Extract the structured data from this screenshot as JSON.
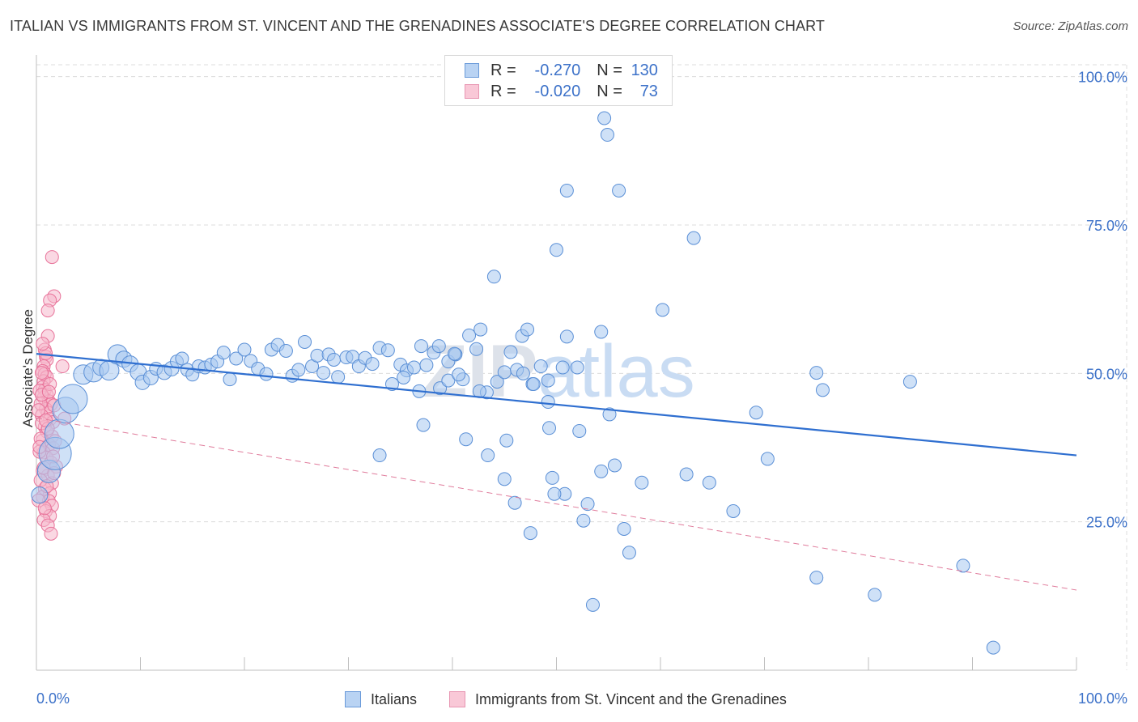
{
  "header": {
    "title": "ITALIAN VS IMMIGRANTS FROM ST. VINCENT AND THE GRENADINES ASSOCIATE'S DEGREE CORRELATION CHART",
    "source": "Source: ZipAtlas.com"
  },
  "legend": {
    "rows": [
      {
        "r_label": "R =",
        "r_value": "-0.270",
        "n_label": "N =",
        "n_value": "130"
      },
      {
        "r_label": "R =",
        "r_value": "-0.020",
        "n_label": "N =",
        "n_value": "73"
      }
    ],
    "bottom": [
      "Italians",
      "Immigrants from St. Vincent and the Grenadines"
    ]
  },
  "colors": {
    "blue_fill": "#a8c8f0",
    "blue_stroke": "#5a8fd6",
    "blue_line": "#2f6fd0",
    "pink_fill": "#f6b8cc",
    "pink_stroke": "#e8739a",
    "pink_line": "#e07c9c",
    "tick_text": "#3d72c9",
    "grid": "#dcdcdc"
  },
  "chart_data": {
    "type": "scatter",
    "ylabel": "Associate's Degree",
    "xlim": [
      0,
      100
    ],
    "ylim": [
      0,
      102
    ],
    "x_tick_labels": [
      "0.0%",
      "100.0%"
    ],
    "y_ticks": [
      25,
      50,
      75,
      100
    ],
    "y_tick_labels": [
      "25.0%",
      "50.0%",
      "75.0%",
      "100.0%"
    ],
    "grid": "horizontal dashed",
    "watermark": "ZIPatlas",
    "series": [
      {
        "name": "Italians",
        "color": "#a8c8f0",
        "trend": {
          "x": [
            0,
            100
          ],
          "y": [
            53.3,
            36.2
          ]
        },
        "points": [
          [
            0.3,
            29.5,
            10
          ],
          [
            1.2,
            33.5,
            14
          ],
          [
            1.8,
            36.5,
            20
          ],
          [
            2.2,
            39.8,
            18
          ],
          [
            2.8,
            43.8,
            16
          ],
          [
            3.5,
            45.7,
            18
          ],
          [
            4.5,
            49.8,
            12
          ],
          [
            5.5,
            50.2,
            12
          ],
          [
            6.2,
            51.0,
            10
          ],
          [
            7.0,
            50.5,
            12
          ],
          [
            7.8,
            53.2,
            12
          ],
          [
            8.4,
            52.4,
            10
          ],
          [
            9.0,
            51.6,
            10
          ],
          [
            9.8,
            50.2,
            10
          ],
          [
            10.2,
            48.5,
            9
          ],
          [
            11.0,
            49.3,
            9
          ],
          [
            11.5,
            50.8,
            8
          ],
          [
            12.3,
            50.2,
            9
          ],
          [
            13.0,
            50.8,
            9
          ],
          [
            13.5,
            52.0,
            8
          ],
          [
            14.0,
            52.5,
            8
          ],
          [
            14.5,
            50.6,
            8
          ],
          [
            15.0,
            49.8,
            8
          ],
          [
            15.6,
            51.2,
            8
          ],
          [
            16.2,
            51.0,
            8
          ],
          [
            16.8,
            51.5,
            8
          ],
          [
            17.4,
            52.0,
            8
          ],
          [
            18.0,
            53.5,
            8
          ],
          [
            18.6,
            49.0,
            8
          ],
          [
            19.2,
            52.5,
            8
          ],
          [
            20.0,
            54.0,
            8
          ],
          [
            20.6,
            52.1,
            8
          ],
          [
            21.3,
            50.8,
            8
          ],
          [
            22.1,
            49.9,
            8
          ],
          [
            22.6,
            54.0,
            8
          ],
          [
            23.2,
            54.8,
            8
          ],
          [
            24.0,
            53.8,
            8
          ],
          [
            24.6,
            49.6,
            8
          ],
          [
            25.2,
            50.6,
            8
          ],
          [
            25.8,
            55.3,
            8
          ],
          [
            26.5,
            51.2,
            8
          ],
          [
            27.0,
            53.0,
            8
          ],
          [
            27.6,
            50.1,
            8
          ],
          [
            28.1,
            53.2,
            8
          ],
          [
            28.6,
            52.3,
            8
          ],
          [
            29.0,
            49.4,
            8
          ],
          [
            29.8,
            52.7,
            8
          ],
          [
            30.4,
            52.8,
            8
          ],
          [
            31.0,
            51.2,
            8
          ],
          [
            31.6,
            52.6,
            8
          ],
          [
            32.3,
            51.6,
            8
          ],
          [
            33.0,
            54.3,
            8
          ],
          [
            33.8,
            53.9,
            8
          ],
          [
            34.2,
            48.2,
            8
          ],
          [
            35.0,
            51.5,
            8
          ],
          [
            35.6,
            50.5,
            8
          ],
          [
            36.3,
            51.0,
            8
          ],
          [
            37.0,
            54.6,
            8
          ],
          [
            37.5,
            51.4,
            8
          ],
          [
            38.2,
            53.5,
            8
          ],
          [
            38.8,
            47.5,
            8
          ],
          [
            39.6,
            52.0,
            8
          ],
          [
            40.3,
            53.2,
            8
          ],
          [
            41.0,
            49.0,
            8
          ],
          [
            41.6,
            56.4,
            8
          ],
          [
            42.3,
            54.1,
            8
          ],
          [
            42.7,
            57.4,
            8
          ],
          [
            43.3,
            46.8,
            8
          ],
          [
            44.3,
            48.6,
            8
          ],
          [
            45.0,
            50.2,
            8
          ],
          [
            45.6,
            53.6,
            8
          ],
          [
            46.2,
            50.6,
            8
          ],
          [
            46.7,
            56.3,
            8
          ],
          [
            47.2,
            57.4,
            8
          ],
          [
            47.7,
            48.2,
            8
          ],
          [
            48.5,
            51.2,
            8
          ],
          [
            49.2,
            45.2,
            8
          ],
          [
            50.6,
            51.0,
            8
          ],
          [
            51.0,
            56.2,
            8
          ],
          [
            52.0,
            51.0,
            8
          ],
          [
            49.2,
            48.8,
            8
          ],
          [
            47.8,
            48.2,
            8
          ],
          [
            45.2,
            38.7,
            8
          ],
          [
            41.3,
            38.9,
            8
          ],
          [
            37.2,
            41.3,
            8
          ],
          [
            36.8,
            47.0,
            8
          ],
          [
            35.3,
            49.3,
            8
          ],
          [
            44.0,
            66.3,
            8
          ],
          [
            50.0,
            70.8,
            8
          ],
          [
            51.0,
            80.8,
            8
          ],
          [
            54.6,
            93.0,
            8
          ],
          [
            54.9,
            90.2,
            8
          ],
          [
            56.0,
            80.8,
            8
          ],
          [
            53.0,
            28.0,
            8
          ],
          [
            52.6,
            25.2,
            8
          ],
          [
            53.5,
            11.0,
            8
          ],
          [
            54.3,
            57.0,
            8
          ],
          [
            55.1,
            43.1,
            8
          ],
          [
            55.6,
            34.5,
            8
          ],
          [
            54.3,
            33.5,
            8
          ],
          [
            56.5,
            23.8,
            8
          ],
          [
            57.0,
            19.8,
            8
          ],
          [
            58.2,
            31.6,
            8
          ],
          [
            60.2,
            60.7,
            8
          ],
          [
            62.5,
            33.0,
            8
          ],
          [
            63.2,
            72.8,
            8
          ],
          [
            64.7,
            31.6,
            8
          ],
          [
            67.0,
            26.8,
            8
          ],
          [
            69.2,
            43.4,
            8
          ],
          [
            70.3,
            35.6,
            8
          ],
          [
            75.0,
            50.1,
            8
          ],
          [
            75.6,
            47.2,
            8
          ],
          [
            75.0,
            15.6,
            8
          ],
          [
            80.6,
            12.7,
            8
          ],
          [
            84.0,
            48.6,
            8
          ],
          [
            89.1,
            17.6,
            8
          ],
          [
            92.0,
            3.8,
            8
          ],
          [
            39.6,
            48.8,
            8
          ],
          [
            38.7,
            54.6,
            8
          ],
          [
            50.8,
            29.7,
            8
          ],
          [
            49.6,
            32.4,
            8
          ],
          [
            49.8,
            29.7,
            8
          ],
          [
            49.3,
            40.8,
            8
          ],
          [
            46.0,
            28.2,
            8
          ],
          [
            47.5,
            23.1,
            8
          ],
          [
            52.2,
            40.3,
            8
          ],
          [
            40.6,
            49.8,
            8
          ],
          [
            45.0,
            32.2,
            8
          ],
          [
            42.6,
            47.0,
            8
          ],
          [
            43.4,
            36.2,
            8
          ],
          [
            46.8,
            50.0,
            8
          ],
          [
            33.0,
            36.2,
            8
          ],
          [
            40.2,
            53.3,
            8
          ]
        ]
      },
      {
        "name": "Immigrants from St. Vincent and the Grenadines",
        "color": "#f6b8cc",
        "trend": {
          "x": [
            0,
            100
          ],
          "y": [
            42.5,
            13.5
          ]
        },
        "points": [
          [
            1.5,
            69.6,
            8
          ],
          [
            1.7,
            63.0,
            8
          ],
          [
            1.3,
            62.3,
            8
          ],
          [
            1.1,
            60.6,
            8
          ],
          [
            1.1,
            56.3,
            8
          ],
          [
            0.8,
            54.0,
            8
          ],
          [
            0.9,
            52.8,
            8
          ],
          [
            1.0,
            52.3,
            8
          ],
          [
            0.7,
            51.2,
            8
          ],
          [
            0.6,
            50.4,
            8
          ],
          [
            0.8,
            49.9,
            8
          ],
          [
            1.0,
            49.4,
            8
          ],
          [
            0.7,
            48.7,
            8
          ],
          [
            0.6,
            47.7,
            8
          ],
          [
            0.8,
            47.2,
            8
          ],
          [
            1.0,
            46.4,
            8
          ],
          [
            0.7,
            45.9,
            8
          ],
          [
            1.2,
            45.3,
            8
          ],
          [
            1.4,
            44.8,
            8
          ],
          [
            0.9,
            44.0,
            8
          ],
          [
            1.1,
            43.4,
            8
          ],
          [
            0.5,
            42.9,
            8
          ],
          [
            1.3,
            42.3,
            8
          ],
          [
            1.6,
            41.8,
            8
          ],
          [
            0.8,
            41.0,
            8
          ],
          [
            1.0,
            40.2,
            8
          ],
          [
            1.5,
            39.4,
            8
          ],
          [
            0.6,
            38.7,
            8
          ],
          [
            1.2,
            38.0,
            8
          ],
          [
            1.6,
            37.4,
            8
          ],
          [
            0.7,
            36.7,
            8
          ],
          [
            1.0,
            35.8,
            8
          ],
          [
            1.4,
            35.0,
            8
          ],
          [
            1.9,
            34.3,
            8
          ],
          [
            0.6,
            33.6,
            8
          ],
          [
            1.1,
            32.8,
            8
          ],
          [
            1.5,
            31.5,
            8
          ],
          [
            0.8,
            30.6,
            8
          ],
          [
            1.3,
            29.8,
            8
          ],
          [
            0.6,
            29.2,
            8
          ],
          [
            1.2,
            28.5,
            8
          ],
          [
            1.5,
            27.7,
            8
          ],
          [
            0.9,
            26.8,
            8
          ],
          [
            1.3,
            26.0,
            8
          ],
          [
            0.7,
            25.3,
            8
          ],
          [
            1.1,
            24.4,
            8
          ],
          [
            1.4,
            23.0,
            8
          ],
          [
            2.5,
            51.2,
            8
          ],
          [
            2.7,
            42.4,
            8
          ],
          [
            0.4,
            44.9,
            8
          ],
          [
            0.5,
            41.6,
            8
          ],
          [
            1.8,
            38.6,
            8
          ],
          [
            0.3,
            36.8,
            8
          ],
          [
            0.4,
            32.0,
            8
          ],
          [
            0.9,
            53.4,
            8
          ],
          [
            0.6,
            55.0,
            8
          ],
          [
            1.7,
            44.6,
            8
          ],
          [
            0.3,
            47.1,
            8
          ],
          [
            1.3,
            48.2,
            8
          ],
          [
            0.5,
            50.1,
            8
          ],
          [
            0.4,
            39.0,
            8
          ],
          [
            0.7,
            34.1,
            8
          ],
          [
            1.0,
            31.0,
            8
          ],
          [
            0.2,
            28.6,
            8
          ],
          [
            0.8,
            27.3,
            8
          ],
          [
            1.6,
            36.0,
            8
          ],
          [
            0.2,
            43.8,
            8
          ],
          [
            1.1,
            40.7,
            8
          ],
          [
            0.9,
            42.1,
            8
          ],
          [
            0.5,
            46.4,
            8
          ],
          [
            1.2,
            46.9,
            8
          ],
          [
            1.7,
            33.2,
            8
          ],
          [
            0.3,
            37.6,
            8
          ]
        ]
      }
    ]
  }
}
